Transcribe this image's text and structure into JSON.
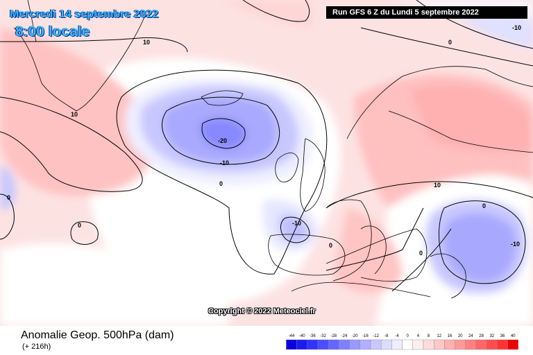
{
  "header": {
    "date": "Mercredi 14 septembre 2022",
    "time": "8:00 locale",
    "run": "Run GFS 6 Z du Lundi 5 septembre 2022"
  },
  "map": {
    "copyright": "Copyright © 2022 Meteociel.fr",
    "contour_labels": [
      "10",
      "-10",
      "0",
      "10",
      "-20",
      "-10",
      "0",
      "0",
      "0",
      "10",
      "0",
      "-10",
      "0",
      "-10",
      "0"
    ]
  },
  "footer": {
    "product": "Anomalie Geop. 500hPa (dam)",
    "lead": "(+ 216h)"
  },
  "legend": {
    "ticks": [
      "-44",
      "-40",
      "-36",
      "-32",
      "-28",
      "-24",
      "-20",
      "-16",
      "-12",
      "-8",
      "-4",
      "0",
      "4",
      "8",
      "12",
      "16",
      "20",
      "24",
      "28",
      "32",
      "36",
      "40"
    ],
    "colors": [
      "#0a00e0",
      "#1c1cf0",
      "#3333ff",
      "#4d4dff",
      "#6666ff",
      "#8080ff",
      "#9999ff",
      "#b0b0ff",
      "#c8c8ff",
      "#dcdcff",
      "#eeeeff",
      "#ffffff",
      "#ffeeee",
      "#ffdcdc",
      "#ffc8c8",
      "#ffb0b0",
      "#ff9999",
      "#ff8080",
      "#ff6666",
      "#ff4d4d",
      "#ff3333",
      "#f00000"
    ]
  }
}
